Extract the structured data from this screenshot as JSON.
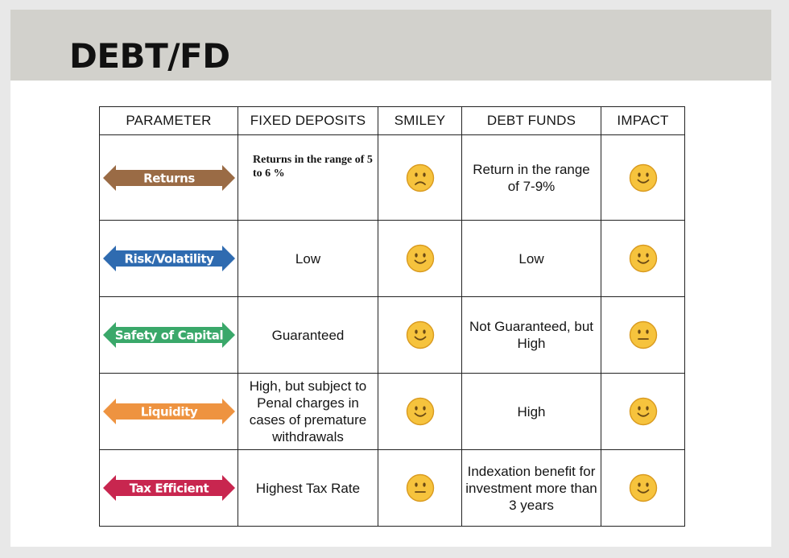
{
  "title": "DEBT/FD",
  "columns": [
    "PARAMETER",
    "FIXED DEPOSITS",
    "SMILEY",
    "DEBT FUNDS",
    "IMPACT"
  ],
  "rows": [
    {
      "parameter": "Returns",
      "color": "#9a6b45",
      "fixed_deposits": "Returns in the range of 5 to 6 %",
      "smiley": "frown",
      "debt_funds": "Return in the range of 7-9%",
      "impact": "happy"
    },
    {
      "parameter": "Risk/Volatility",
      "color": "#2f6bb0",
      "fixed_deposits": "Low",
      "smiley": "happy",
      "debt_funds": "Low",
      "impact": "happy"
    },
    {
      "parameter": "Safety of Capital",
      "color": "#3aa86a",
      "fixed_deposits": "Guaranteed",
      "smiley": "happy",
      "debt_funds": "Not Guaranteed, but High",
      "impact": "neutral"
    },
    {
      "parameter": "Liquidity",
      "color": "#ee9340",
      "fixed_deposits": "High, but subject to Penal charges in cases of premature withdrawals",
      "smiley": "happy",
      "debt_funds": "High",
      "impact": "happy"
    },
    {
      "parameter": "Tax Efficient",
      "color": "#c8264f",
      "fixed_deposits": "Highest Tax Rate",
      "smiley": "neutral",
      "debt_funds": "Indexation benefit for investment more than 3 years",
      "impact": "happy"
    }
  ],
  "smiley_colors": {
    "face": "#f6c33d",
    "face_edge": "#d99a1f",
    "features": "#6b4a14"
  }
}
